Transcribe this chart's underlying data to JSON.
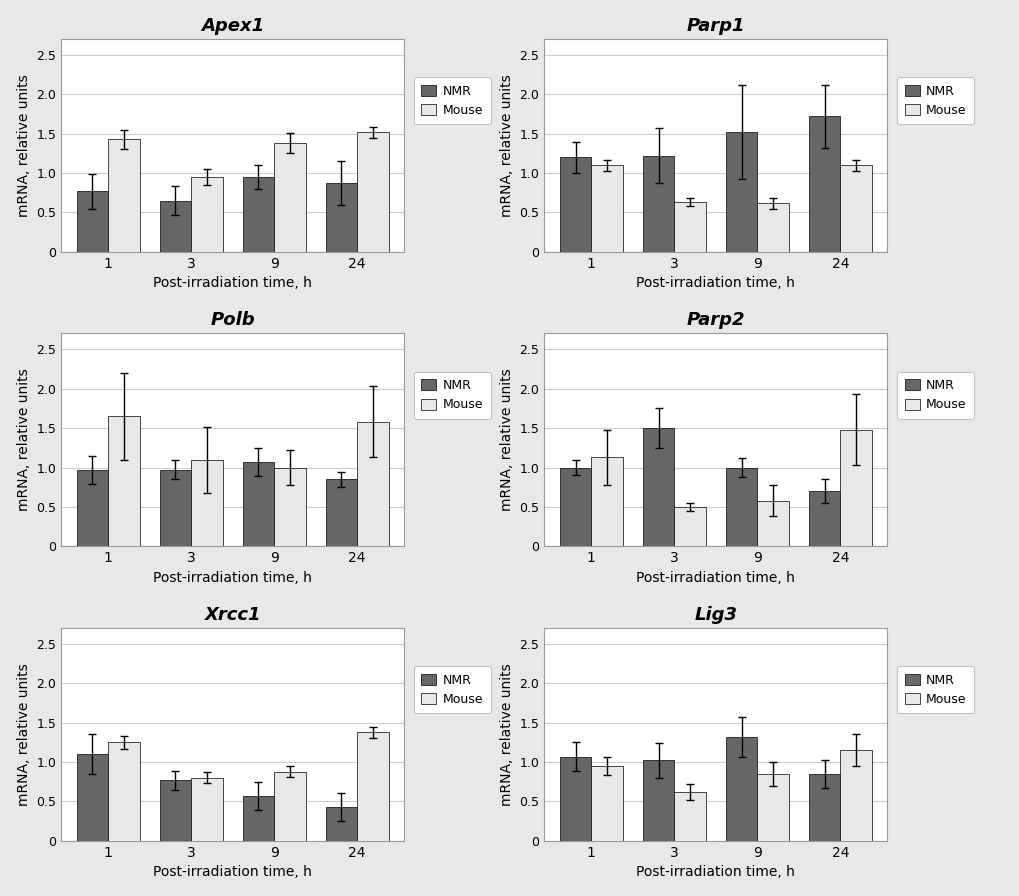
{
  "subplots": [
    {
      "title": "Apex1",
      "nmr_values": [
        0.77,
        0.65,
        0.95,
        0.87
      ],
      "mouse_values": [
        1.43,
        0.95,
        1.38,
        1.52
      ],
      "nmr_err": [
        0.22,
        0.18,
        0.15,
        0.28
      ],
      "mouse_err": [
        0.12,
        0.1,
        0.13,
        0.07
      ]
    },
    {
      "title": "Parp1",
      "nmr_values": [
        1.2,
        1.22,
        1.52,
        1.72
      ],
      "mouse_values": [
        1.1,
        0.63,
        0.62,
        1.1
      ],
      "nmr_err": [
        0.2,
        0.35,
        0.6,
        0.4
      ],
      "mouse_err": [
        0.07,
        0.05,
        0.07,
        0.07
      ]
    },
    {
      "title": "Polb",
      "nmr_values": [
        0.97,
        0.97,
        1.07,
        0.85
      ],
      "mouse_values": [
        1.65,
        1.1,
        1.0,
        1.58
      ],
      "nmr_err": [
        0.18,
        0.12,
        0.18,
        0.1
      ],
      "mouse_err": [
        0.55,
        0.42,
        0.22,
        0.45
      ]
    },
    {
      "title": "Parp2",
      "nmr_values": [
        1.0,
        1.5,
        1.0,
        0.7
      ],
      "mouse_values": [
        1.13,
        0.5,
        0.58,
        1.48
      ],
      "nmr_err": [
        0.1,
        0.25,
        0.12,
        0.15
      ],
      "mouse_err": [
        0.35,
        0.05,
        0.2,
        0.45
      ]
    },
    {
      "title": "Xrcc1",
      "nmr_values": [
        1.1,
        0.77,
        0.57,
        0.43
      ],
      "mouse_values": [
        1.25,
        0.8,
        0.88,
        1.38
      ],
      "nmr_err": [
        0.25,
        0.12,
        0.18,
        0.18
      ],
      "mouse_err": [
        0.08,
        0.07,
        0.07,
        0.07
      ]
    },
    {
      "title": "Lig3",
      "nmr_values": [
        1.07,
        1.02,
        1.32,
        0.85
      ],
      "mouse_values": [
        0.95,
        0.62,
        0.85,
        1.15
      ],
      "nmr_err": [
        0.18,
        0.22,
        0.25,
        0.18
      ],
      "mouse_err": [
        0.12,
        0.1,
        0.15,
        0.2
      ]
    }
  ],
  "x_labels": [
    "1",
    "3",
    "9",
    "24"
  ],
  "xlabel": "Post-irradiation time, h",
  "ylabel": "mRNA, relative units",
  "ylim": [
    0,
    2.7
  ],
  "yticks": [
    0,
    0.5,
    1.0,
    1.5,
    2.0,
    2.5
  ],
  "ytick_labels": [
    "0",
    "0.5",
    "1.0",
    "1.5",
    "2.0",
    "2.5"
  ],
  "nmr_color": "#666666",
  "mouse_color": "#e8e8e8",
  "bar_width": 0.38,
  "fig_background": "#e8e8e8",
  "panel_background": "#ffffff",
  "grid_color": "#cccccc",
  "border_color": "#999999"
}
